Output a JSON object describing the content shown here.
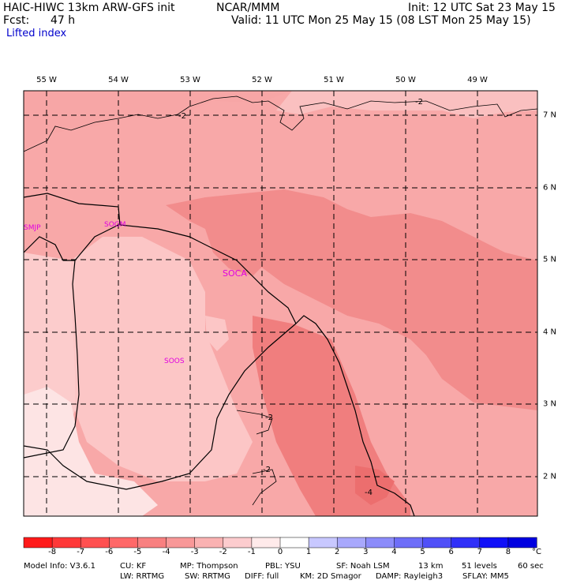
{
  "header": {
    "model": "HAIC-HIWC 13km ARW-GFS init",
    "org": "NCAR/MMM",
    "init": "Init: 12 UTC Sat 23 May 15",
    "fcst_label": "Fcst:",
    "fcst_hours": "47 h",
    "valid": "Valid: 11 UTC Mon 25 May 15 (08 LST Mon 25 May 15)",
    "field": "Lifted index"
  },
  "map": {
    "lon_labels": [
      "55 W",
      "54 W",
      "53 W",
      "52 W",
      "51 W",
      "50 W",
      "49 W"
    ],
    "lat_labels": [
      "7 N",
      "6 N",
      "5 N",
      "4 N",
      "3 N",
      "2 N"
    ],
    "stations": [
      "SMJP",
      "SOGM",
      "SOCA",
      "SOOS"
    ],
    "contour_labels": [
      "-2",
      "-2",
      "-2",
      "-2",
      "-4"
    ]
  },
  "colorbar": {
    "ticks": [
      "-8",
      "-7",
      "-6",
      "-5",
      "-4",
      "-3",
      "-2",
      "-1",
      "0",
      "1",
      "2",
      "3",
      "4",
      "5",
      "6",
      "7",
      "8"
    ],
    "unit": "°C",
    "colors": [
      "#ff1a1a",
      "#ff3838",
      "#ff5050",
      "#ff6868",
      "#f88080",
      "#f89898",
      "#fab2b2",
      "#fcccce",
      "#ffeaea",
      "#ffffff",
      "#c8c8ff",
      "#a8a8fc",
      "#8c8cfa",
      "#6e6ef8",
      "#5050f8",
      "#3030f8",
      "#1010f8",
      "#0000e0"
    ]
  },
  "footer": {
    "line1": [
      "Model Info: V3.6.1",
      "CU: KF",
      "MP: Thompson",
      "PBL: YSU",
      "SF: Noah LSM",
      "13 km",
      "51 levels",
      "60 sec"
    ],
    "line2": [
      "LW: RRTMG",
      "SW: RRTMG",
      "DIFF: full",
      "KM: 2D Smagor",
      "DAMP: Rayleigh3",
      "SFLAY: MM5"
    ]
  }
}
